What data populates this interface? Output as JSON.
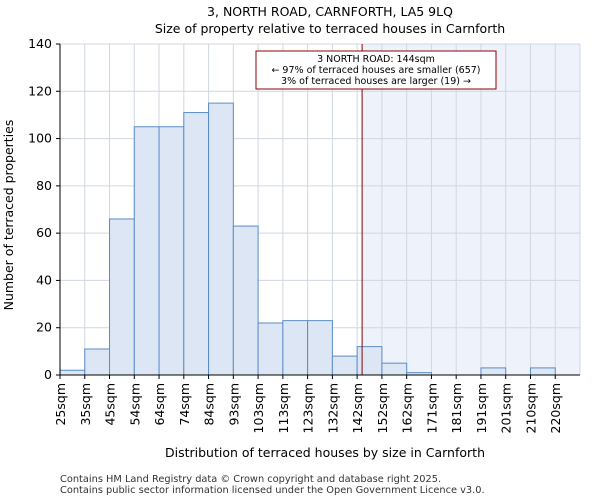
{
  "chart_data": {
    "type": "bar",
    "title": "3, NORTH ROAD, CARNFORTH, LA5 9LQ",
    "subtitle": "Size of property relative to terraced houses in Carnforth",
    "xlabel": "Distribution of terraced houses by size in Carnforth",
    "ylabel": "Number of terraced properties",
    "categories": [
      "25sqm",
      "35sqm",
      "45sqm",
      "54sqm",
      "64sqm",
      "74sqm",
      "84sqm",
      "93sqm",
      "103sqm",
      "113sqm",
      "123sqm",
      "132sqm",
      "142sqm",
      "152sqm",
      "162sqm",
      "171sqm",
      "181sqm",
      "191sqm",
      "201sqm",
      "210sqm",
      "220sqm"
    ],
    "values": [
      2,
      11,
      66,
      105,
      105,
      111,
      115,
      63,
      22,
      23,
      23,
      8,
      12,
      5,
      1,
      0,
      0,
      3,
      0,
      3,
      0
    ],
    "ylim": [
      0,
      140
    ],
    "yticks": [
      0,
      20,
      40,
      60,
      80,
      100,
      120,
      140
    ],
    "grid": true,
    "bar_color": "#dce6f4",
    "bar_edge_color": "#5b8cc8",
    "highlight_fill": "#eef2fb",
    "marker_color": "#8b0000",
    "marker_position_bin": 12.2,
    "annotation": {
      "line1": "3 NORTH ROAD: 144sqm",
      "line2": "← 97% of terraced houses are smaller (657)",
      "line3": "3% of terraced houses are larger (19) →"
    }
  },
  "footer": {
    "line1": "Contains HM Land Registry data © Crown copyright and database right 2025.",
    "line2": "Contains public sector information licensed under the Open Government Licence v3.0."
  }
}
